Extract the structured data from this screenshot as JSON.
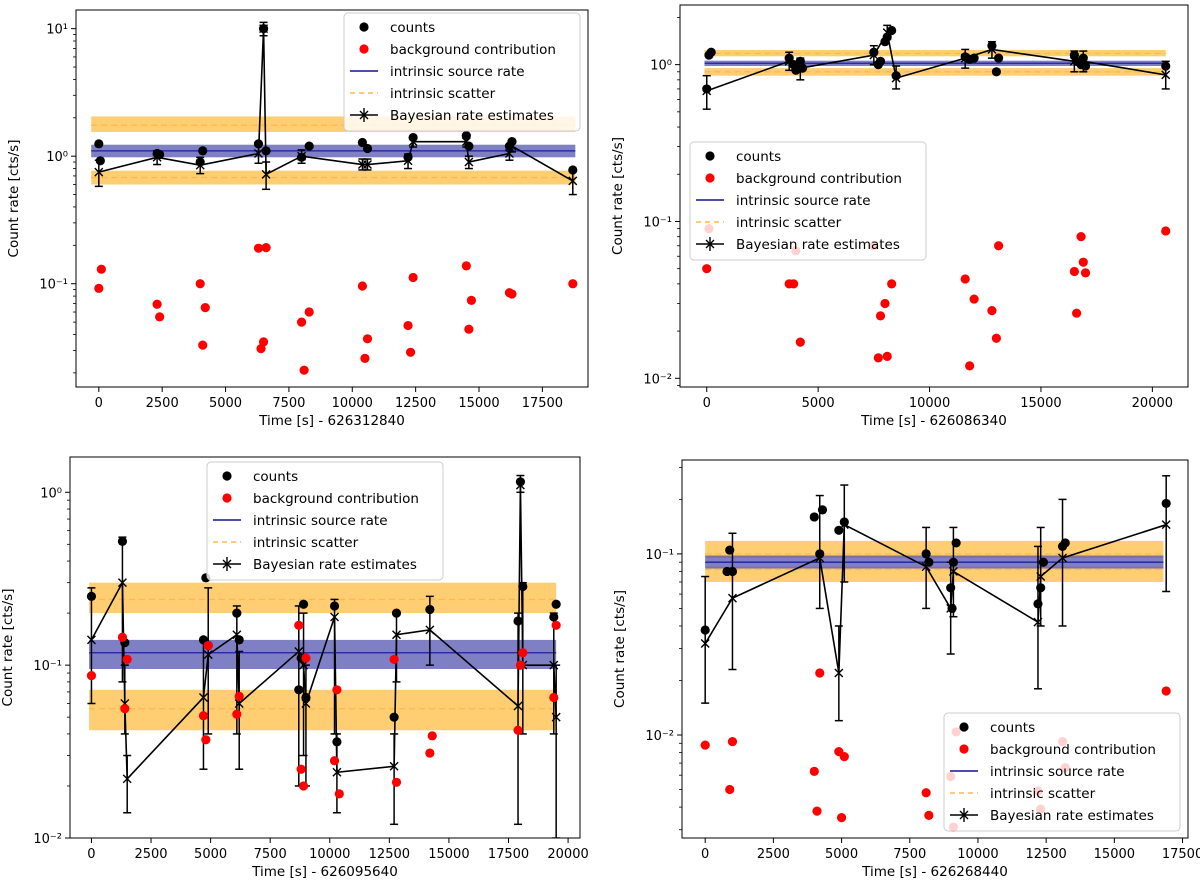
{
  "colors": {
    "counts": "#000000",
    "background": "#ff0000",
    "intrinsic_rate": "#1f1f9e",
    "intrinsic_band": "#4d4dad",
    "scatter_band": "#ffa500",
    "scatter_line": "#ffb84d",
    "bayes": "#000000"
  },
  "chart_data": [
    {
      "type": "scatter",
      "id": "tl",
      "xlabel": "Time [s] - 626312840",
      "ylabel": "Count rate [cts/s]",
      "yscale": "log",
      "xlim": [
        -900,
        19300
      ],
      "ylim": [
        0.0155,
        14
      ],
      "xticks": [
        0,
        2500,
        5000,
        7500,
        10000,
        12500,
        15000,
        17500
      ],
      "xtick_labels": [
        "0",
        "2500",
        "5000",
        "7500",
        "10000",
        "12500",
        "15000",
        "17500"
      ],
      "yticks": [
        0.1,
        1,
        10
      ],
      "ytick_labels": [
        "10⁻¹",
        "10⁰",
        "10¹"
      ],
      "legend_position": "top-right",
      "legend": [
        "counts",
        "background contribution",
        "intrinsic source rate",
        "intrinsic scatter",
        "Bayesian rate estimates"
      ],
      "intrinsic_rate": {
        "x": [
          -300,
          18800
        ],
        "value": 1.1,
        "band": [
          0.98,
          1.23
        ]
      },
      "scatter_upper": {
        "value": 1.75,
        "band": [
          1.55,
          2.05
        ]
      },
      "scatter_lower": {
        "value": 0.68,
        "band": [
          0.6,
          0.77
        ]
      },
      "counts": {
        "x": [
          0,
          60,
          2300,
          2400,
          4000,
          4100,
          6300,
          6500,
          6600,
          8000,
          8300,
          10400,
          10600,
          12200,
          12400,
          14500,
          14600,
          16200,
          16300,
          18700
        ],
        "y": [
          1.25,
          0.92,
          1.05,
          1.03,
          0.9,
          1.1,
          1.25,
          10.0,
          1.1,
          0.98,
          1.2,
          1.28,
          1.15,
          0.98,
          1.4,
          1.45,
          1.2,
          1.2,
          1.3,
          0.78
        ]
      },
      "background": {
        "x": [
          0,
          100,
          2300,
          2400,
          4000,
          4100,
          4200,
          6300,
          6400,
          6500,
          6600,
          8000,
          8100,
          8300,
          10400,
          10500,
          10600,
          12200,
          12300,
          12400,
          14500,
          14600,
          14700,
          16200,
          16300,
          18700
        ],
        "y": [
          0.092,
          0.13,
          0.069,
          0.055,
          0.1,
          0.033,
          0.065,
          0.19,
          0.031,
          0.035,
          0.192,
          0.05,
          0.021,
          0.06,
          0.096,
          0.026,
          0.037,
          0.047,
          0.029,
          0.112,
          0.138,
          0.044,
          0.074,
          0.085,
          0.083,
          0.1
        ]
      },
      "bayes": {
        "x": [
          0,
          2300,
          4000,
          6300,
          6500,
          6600,
          8000,
          10400,
          10600,
          12200,
          12400,
          14500,
          14600,
          16200,
          16300,
          18700
        ],
        "y": [
          0.75,
          0.98,
          0.85,
          1.05,
          10.0,
          0.72,
          1.0,
          0.86,
          0.86,
          0.92,
          1.3,
          1.3,
          0.9,
          1.05,
          1.2,
          0.64
        ],
        "lo": [
          0.58,
          0.86,
          0.73,
          0.88,
          8.8,
          0.55,
          0.88,
          0.78,
          0.78,
          0.8,
          1.18,
          1.18,
          0.8,
          0.93,
          1.08,
          0.5
        ],
        "hi": [
          0.93,
          1.1,
          0.98,
          1.22,
          11.2,
          0.9,
          1.12,
          0.95,
          0.95,
          1.04,
          1.42,
          1.42,
          1.0,
          1.17,
          1.32,
          0.78
        ]
      }
    },
    {
      "type": "scatter",
      "id": "tr",
      "xlabel": "Time [s] - 626086340",
      "ylabel": "Count rate [cts/s]",
      "yscale": "log",
      "xlim": [
        -1200,
        21600
      ],
      "ylim": [
        0.0088,
        2.4
      ],
      "xticks": [
        0,
        5000,
        10000,
        15000,
        20000
      ],
      "xtick_labels": [
        "0",
        "5000",
        "10000",
        "15000",
        "20000"
      ],
      "yticks": [
        0.01,
        0.1,
        1
      ],
      "ytick_labels": [
        "10⁻²",
        "10⁻¹",
        "10⁰"
      ],
      "legend_position": "center-left",
      "legend": [
        "counts",
        "background contribution",
        "intrinsic source rate",
        "intrinsic scatter",
        "Bayesian rate estimates"
      ],
      "intrinsic_rate": {
        "x": [
          -100,
          20600
        ],
        "value": 1.02,
        "band": [
          0.98,
          1.06
        ]
      },
      "scatter_upper": {
        "value": 1.18,
        "band": [
          1.13,
          1.24
        ]
      },
      "scatter_lower": {
        "value": 0.9,
        "band": [
          0.85,
          0.95
        ]
      },
      "counts": {
        "x": [
          0,
          100,
          200,
          3700,
          3900,
          4000,
          4200,
          4300,
          7500,
          7700,
          7800,
          8000,
          8100,
          8300,
          8500,
          11600,
          11800,
          12000,
          12800,
          13000,
          13100,
          16500,
          16600,
          16800,
          16900,
          17000,
          20600
        ],
        "y": [
          0.7,
          1.15,
          1.2,
          1.1,
          1.0,
          0.92,
          1.05,
          0.95,
          1.2,
          1.0,
          1.05,
          1.4,
          1.5,
          1.65,
          0.85,
          1.12,
          1.08,
          1.1,
          1.32,
          0.9,
          1.1,
          1.15,
          1.05,
          1.0,
          1.1,
          0.98,
          0.98
        ]
      },
      "background": {
        "x": [
          0,
          100,
          3700,
          3900,
          4000,
          4200,
          7500,
          7700,
          7800,
          8000,
          8100,
          8300,
          11600,
          11800,
          12000,
          12800,
          13000,
          13100,
          16500,
          16600,
          16800,
          16900,
          17000,
          20600
        ],
        "y": [
          0.05,
          0.09,
          0.04,
          0.04,
          0.065,
          0.017,
          0.07,
          0.0135,
          0.025,
          0.03,
          0.0138,
          0.04,
          0.043,
          0.012,
          0.032,
          0.027,
          0.018,
          0.07,
          0.048,
          0.026,
          0.08,
          0.055,
          0.047,
          0.087
        ]
      },
      "bayes": {
        "x": [
          0,
          3700,
          4200,
          7500,
          8100,
          8500,
          11600,
          12800,
          16500,
          16900,
          20600
        ],
        "y": [
          0.68,
          1.05,
          0.95,
          1.15,
          1.6,
          0.82,
          1.1,
          1.25,
          1.05,
          1.05,
          0.86
        ],
        "lo": [
          0.52,
          0.92,
          0.8,
          1.0,
          1.45,
          0.7,
          0.95,
          1.1,
          0.9,
          0.9,
          0.7
        ],
        "hi": [
          0.85,
          1.2,
          1.1,
          1.32,
          1.78,
          0.98,
          1.25,
          1.4,
          1.22,
          1.22,
          1.05
        ]
      }
    },
    {
      "type": "scatter",
      "id": "bl",
      "xlabel": "Time [s] - 626095640",
      "ylabel": "Count rate [cts/s]",
      "yscale": "log",
      "xlim": [
        -900,
        20500
      ],
      "ylim": [
        0.01,
        1.6
      ],
      "xticks": [
        0,
        2500,
        5000,
        7500,
        10000,
        12500,
        15000,
        17500,
        20000
      ],
      "xtick_labels": [
        "0",
        "2500",
        "5000",
        "7500",
        "10000",
        "12500",
        "15000",
        "17500",
        "20000"
      ],
      "yticks": [
        0.01,
        0.1,
        1
      ],
      "ytick_labels": [
        "10⁻²",
        "10⁻¹",
        "10⁰"
      ],
      "legend_position": "top-center",
      "legend": [
        "counts",
        "background contribution",
        "intrinsic source rate",
        "intrinsic scatter",
        "Bayesian rate estimates"
      ],
      "intrinsic_rate": {
        "x": [
          -100,
          19500
        ],
        "value": 0.118,
        "band": [
          0.095,
          0.14
        ]
      },
      "scatter_upper": {
        "value": 0.24,
        "band": [
          0.2,
          0.3
        ]
      },
      "scatter_lower": {
        "value": 0.056,
        "band": [
          0.042,
          0.072
        ]
      },
      "counts": {
        "x": [
          0,
          1300,
          1400,
          4700,
          4800,
          4900,
          6100,
          6200,
          8700,
          8800,
          8900,
          9000,
          10200,
          10300,
          12700,
          12800,
          14200,
          17900,
          18000,
          18100,
          19400,
          19500
        ],
        "y": [
          0.25,
          0.52,
          0.135,
          0.14,
          0.32,
          0.13,
          0.2,
          0.14,
          0.072,
          0.11,
          0.225,
          0.065,
          0.22,
          0.036,
          0.05,
          0.2,
          0.21,
          0.18,
          1.15,
          0.285,
          0.19,
          0.225
        ]
      },
      "background": {
        "x": [
          0,
          1300,
          1400,
          1500,
          4700,
          4800,
          4900,
          6100,
          6200,
          8700,
          8800,
          8900,
          9000,
          10200,
          10300,
          10400,
          12700,
          12800,
          14200,
          14300,
          17900,
          18000,
          18100,
          19400,
          19500
        ],
        "y": [
          0.087,
          0.145,
          0.056,
          0.108,
          0.051,
          0.037,
          0.13,
          0.052,
          0.066,
          0.17,
          0.025,
          0.02,
          0.11,
          0.028,
          0.072,
          0.018,
          0.108,
          0.021,
          0.031,
          0.039,
          0.042,
          0.1,
          0.118,
          0.065,
          0.17
        ]
      },
      "bayes": {
        "x": [
          0,
          1300,
          1400,
          1500,
          4700,
          4900,
          6100,
          6200,
          8700,
          8900,
          9000,
          10200,
          10300,
          12700,
          12800,
          14200,
          17900,
          18000,
          18100,
          19400,
          19500
        ],
        "y": [
          0.14,
          0.3,
          0.06,
          0.022,
          0.065,
          0.115,
          0.15,
          0.06,
          0.12,
          0.1,
          0.06,
          0.19,
          0.024,
          0.026,
          0.15,
          0.16,
          0.058,
          1.1,
          0.1,
          0.1,
          0.05
        ],
        "lo": [
          0.06,
          0.08,
          0.04,
          0.014,
          0.025,
          0.04,
          0.04,
          0.025,
          0.02,
          0.03,
          0.02,
          0.04,
          0.014,
          0.012,
          0.08,
          0.1,
          0.012,
          1.0,
          0.04,
          0.04,
          0.01
        ],
        "hi": [
          0.28,
          0.55,
          0.1,
          0.03,
          0.14,
          0.28,
          0.22,
          0.12,
          0.22,
          0.2,
          0.1,
          0.24,
          0.04,
          0.04,
          0.2,
          0.25,
          0.2,
          1.25,
          0.3,
          0.2,
          0.1
        ]
      }
    },
    {
      "type": "scatter",
      "id": "br",
      "xlabel": "Time [s] - 626268440",
      "ylabel": "Count rate [cts/s]",
      "yscale": "log",
      "xlim": [
        -850,
        17700
      ],
      "ylim": [
        0.0027,
        0.33
      ],
      "xticks": [
        0,
        2500,
        5000,
        7500,
        10000,
        12500,
        15000,
        17500
      ],
      "xtick_labels": [
        "0",
        "2500",
        "5000",
        "7500",
        "10000",
        "12500",
        "15000",
        "17500"
      ],
      "yticks": [
        0.01,
        0.1
      ],
      "ytick_labels": [
        "10⁻²",
        "10⁻¹"
      ],
      "legend_position": "bottom-right",
      "legend": [
        "counts",
        "background contribution",
        "intrinsic source rate",
        "intrinsic scatter",
        "Bayesian rate estimates"
      ],
      "intrinsic_rate": {
        "x": [
          0,
          16800
        ],
        "value": 0.09,
        "band": [
          0.083,
          0.098
        ]
      },
      "scatter_upper": {
        "value": 0.1,
        "band": [
          0.095,
          0.118
        ]
      },
      "scatter_lower": {
        "value": 0.082,
        "band": [
          0.07,
          0.085
        ]
      },
      "counts": {
        "x": [
          0,
          800,
          900,
          1000,
          4000,
          4200,
          4300,
          4900,
          5100,
          8100,
          8200,
          9000,
          9050,
          9100,
          9200,
          12200,
          12300,
          12400,
          13100,
          13200,
          16900
        ],
        "y": [
          0.038,
          0.08,
          0.105,
          0.08,
          0.16,
          0.1,
          0.175,
          0.135,
          0.15,
          0.1,
          0.09,
          0.065,
          0.05,
          0.09,
          0.115,
          0.053,
          0.065,
          0.09,
          0.11,
          0.115,
          0.19
        ]
      },
      "background": {
        "x": [
          0,
          900,
          1000,
          4000,
          4100,
          4200,
          4900,
          5000,
          5100,
          8100,
          8200,
          9000,
          9100,
          9200,
          12200,
          12300,
          13100,
          13200,
          16900
        ],
        "y": [
          0.0088,
          0.005,
          0.0092,
          0.0063,
          0.0038,
          0.022,
          0.0081,
          0.0035,
          0.0076,
          0.0048,
          0.0036,
          0.0059,
          0.0031,
          0.0104,
          0.0049,
          0.0039,
          0.0092,
          0.0066,
          0.0175
        ]
      },
      "bayes": {
        "x": [
          0,
          1000,
          4200,
          4900,
          5100,
          8100,
          9000,
          9100,
          12200,
          12300,
          13100,
          16900
        ],
        "y": [
          0.032,
          0.057,
          0.095,
          0.022,
          0.145,
          0.085,
          0.05,
          0.08,
          0.042,
          0.075,
          0.095,
          0.145
        ],
        "lo": [
          0.015,
          0.023,
          0.05,
          0.012,
          0.07,
          0.05,
          0.028,
          0.045,
          0.018,
          0.04,
          0.04,
          0.062
        ],
        "hi": [
          0.075,
          0.13,
          0.21,
          0.04,
          0.24,
          0.14,
          0.09,
          0.14,
          0.11,
          0.14,
          0.2,
          0.27
        ]
      }
    }
  ]
}
